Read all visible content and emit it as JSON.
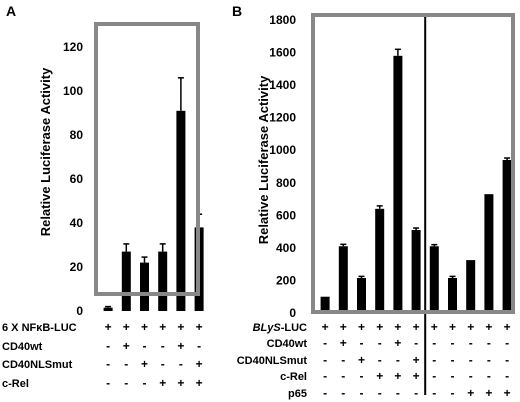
{
  "chart_data": [
    {
      "type": "bar",
      "panel": "A",
      "ylabel": "Relative Luciferase Activity",
      "ylim": [
        0,
        120
      ],
      "yticks": [
        0,
        20,
        40,
        60,
        80,
        100,
        120
      ],
      "values": [
        1.5,
        27,
        22,
        27,
        91,
        38
      ],
      "errors": [
        0.5,
        3.5,
        2.5,
        3.5,
        15,
        6
      ],
      "rows": [
        {
          "label": "6 X NFκB-LUC",
          "signs": [
            "+",
            "+",
            "+",
            "+",
            "+",
            "+"
          ]
        },
        {
          "label": "CD40wt",
          "signs": [
            "-",
            "+",
            "-",
            "-",
            "+",
            "-"
          ]
        },
        {
          "label": "CD40NLSmut",
          "signs": [
            "-",
            "-",
            "+",
            "-",
            "-",
            "+"
          ]
        },
        {
          "label": "c-Rel",
          "signs": [
            "-",
            "-",
            "-",
            "+",
            "+",
            "+"
          ]
        }
      ]
    },
    {
      "type": "bar",
      "panel": "B",
      "ylabel": "Relative Luciferase Activity",
      "ylim": [
        0,
        1800
      ],
      "yticks": [
        0,
        200,
        400,
        600,
        800,
        1000,
        1200,
        1400,
        1600,
        1800
      ],
      "values": [
        100,
        410,
        215,
        640,
        1580,
        510,
        410,
        215,
        325,
        730,
        940
      ],
      "errors": [
        0,
        12,
        10,
        18,
        40,
        12,
        10,
        10,
        0,
        0,
        12
      ],
      "divider_after_bar": 6,
      "rows": [
        {
          "label": "BLyS-LUC",
          "signs": [
            "+",
            "+",
            "+",
            "+",
            "+",
            "+",
            "+",
            "+",
            "+",
            "+",
            "+"
          ]
        },
        {
          "label": "CD40wt",
          "signs": [
            "-",
            "+",
            "-",
            "-",
            "+",
            "-",
            "-",
            "-",
            "-",
            "-",
            "-"
          ]
        },
        {
          "label": "CD40NLSmut",
          "signs": [
            "-",
            "-",
            "+",
            "-",
            "-",
            "+",
            "-",
            "-",
            "-",
            "-",
            "-"
          ]
        },
        {
          "label": "c-Rel",
          "signs": [
            "-",
            "-",
            "-",
            "+",
            "+",
            "+",
            "-",
            "-",
            "-",
            "-",
            "-"
          ]
        },
        {
          "label": "p65",
          "signs": [
            "-",
            "-",
            "-",
            "-",
            "-",
            "-",
            "-",
            "-",
            "+",
            "+",
            "+"
          ]
        }
      ]
    }
  ],
  "panel_labels": [
    "A",
    "B"
  ],
  "colors": {
    "bar": "#000000",
    "frame": "#888888"
  }
}
